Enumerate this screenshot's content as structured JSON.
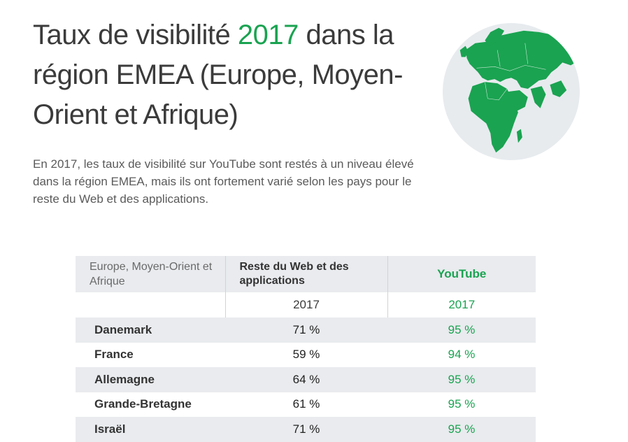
{
  "title": {
    "before": "Taux de visibilité ",
    "accent": "2017",
    "after": " dans la région EMEA (Europe, Moyen-Orient et Afrique)"
  },
  "intro": "En 2017, les taux de visibilité sur YouTube sont restés à un niveau élevé dans la région EMEA, mais ils ont fortement varié selon les pays pour le reste du Web et des applications.",
  "colors": {
    "accent": "#1aa351",
    "globe": "#e7ebee",
    "row_shade": "#e9ebee"
  },
  "table": {
    "headers": {
      "region": "Europe, Moyen-Orient et Afrique",
      "web": "Reste du Web et des applications",
      "youtube": "YouTube"
    },
    "year_row": {
      "web": "2017",
      "youtube": "2017"
    },
    "rows": [
      {
        "country": "Danemark",
        "web": "71 %",
        "youtube": "95 %"
      },
      {
        "country": "France",
        "web": "59 %",
        "youtube": "94 %"
      },
      {
        "country": "Allemagne",
        "web": "64 %",
        "youtube": "95 %"
      },
      {
        "country": "Grande-Bretagne",
        "web": "61 %",
        "youtube": "95 %"
      },
      {
        "country": "Israël",
        "web": "71 %",
        "youtube": "95 %"
      }
    ]
  },
  "globe_icon": "globe-emea-map-icon"
}
